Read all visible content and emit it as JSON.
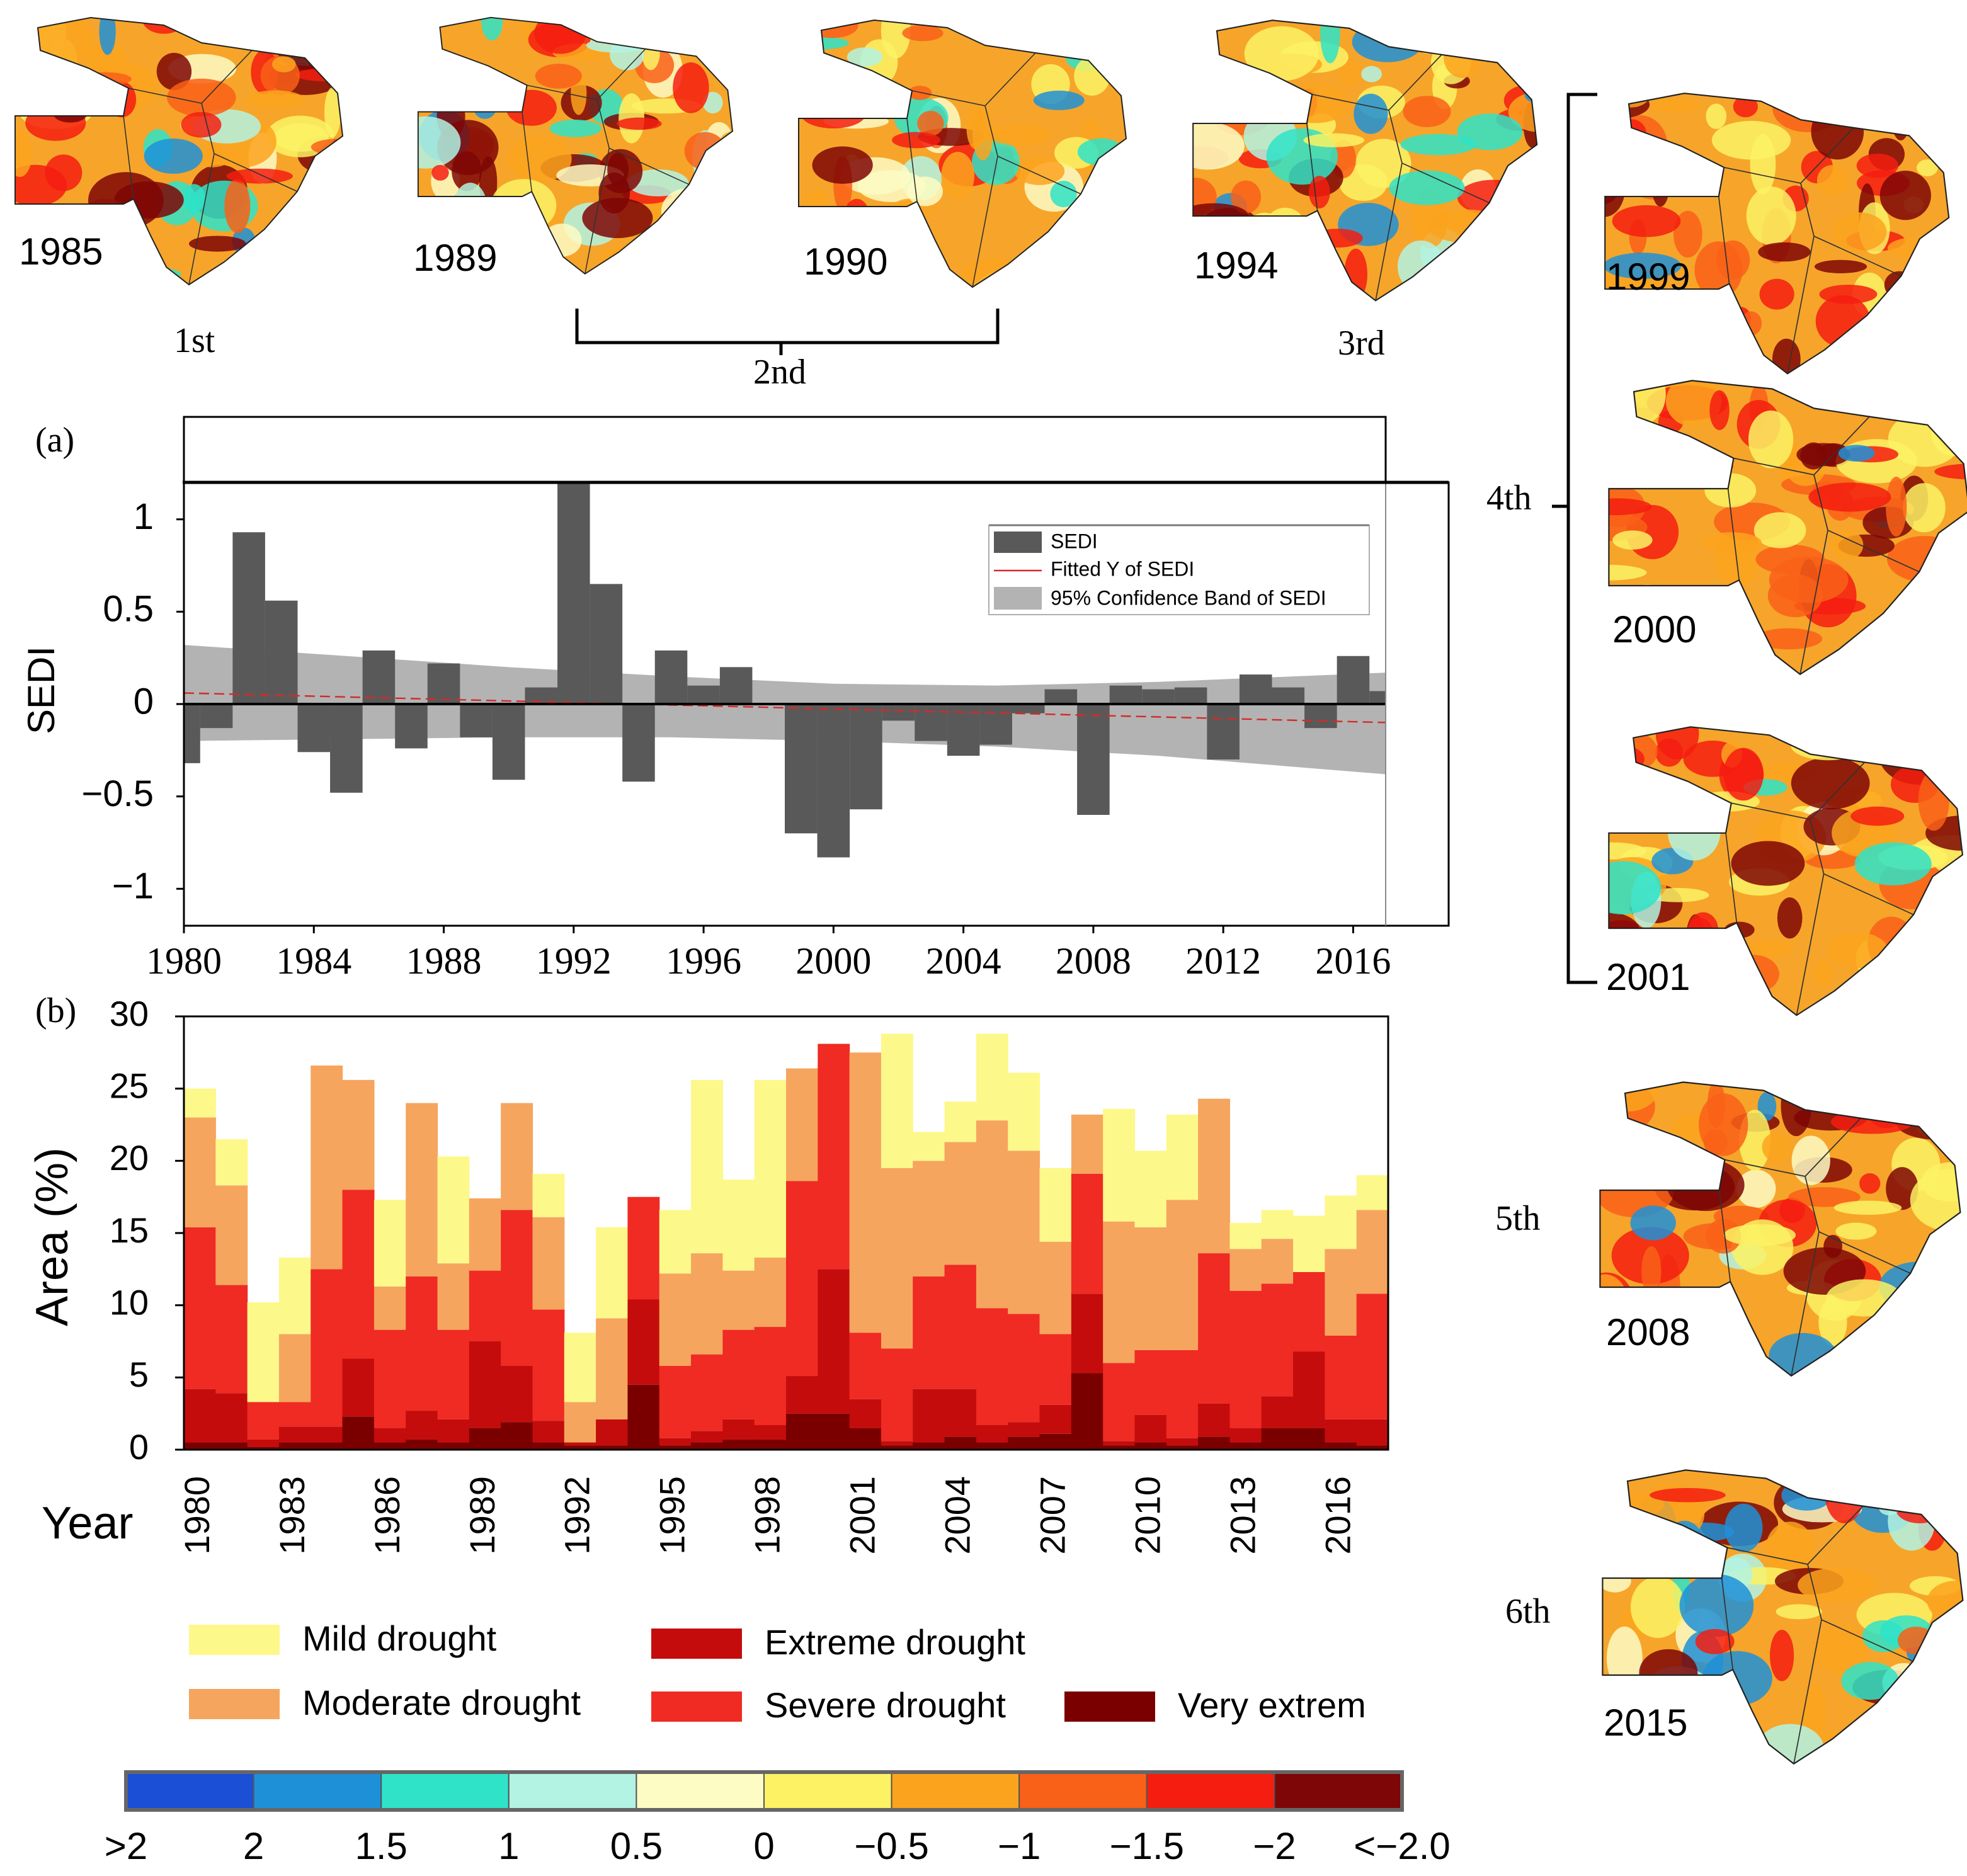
{
  "maps": [
    {
      "label": "1985"
    },
    {
      "label": "1989"
    },
    {
      "label": "1990"
    },
    {
      "label": "1994"
    },
    {
      "label": "1999"
    },
    {
      "label": "2000"
    },
    {
      "label": "2001"
    },
    {
      "label": "2008"
    },
    {
      "label": "2015"
    }
  ],
  "events": [
    "1st",
    "2nd",
    "3rd",
    "4th",
    "5th",
    "6th"
  ],
  "chart_data": [
    {
      "type": "bar",
      "label": "(a)",
      "ylabel": "SEDI",
      "x": [
        1980,
        1981,
        1982,
        1983,
        1984,
        1985,
        1986,
        1987,
        1988,
        1989,
        1990,
        1991,
        1992,
        1993,
        1994,
        1995,
        1996,
        1997,
        1998,
        1999,
        2000,
        2001,
        2002,
        2003,
        2004,
        2005,
        2006,
        2007,
        2008,
        2009,
        2010,
        2011,
        2012,
        2013,
        2014,
        2015,
        2016,
        2017
      ],
      "series": [
        {
          "name": "SEDI",
          "color": "#595959",
          "values": [
            -0.32,
            -0.13,
            0.93,
            0.56,
            -0.26,
            -0.48,
            0.29,
            -0.24,
            0.22,
            -0.18,
            -0.41,
            0.09,
            1.2,
            0.65,
            -0.42,
            0.29,
            0.1,
            0.2,
            0.0,
            -0.7,
            -0.83,
            -0.57,
            -0.09,
            -0.2,
            -0.28,
            -0.22,
            -0.05,
            0.08,
            -0.6,
            0.1,
            0.08,
            0.09,
            -0.3,
            0.16,
            0.09,
            -0.13,
            0.26,
            0.07
          ]
        }
      ],
      "fit": {
        "name": "Fitted Y of SEDI",
        "color": "#d42a2a",
        "x": [
          1980,
          2017
        ],
        "values": [
          0.06,
          -0.1
        ]
      },
      "band": {
        "name": "95% Confidence Band of SEDI",
        "color": "#b3b3b3",
        "x": [
          1980,
          1985,
          1990,
          1995,
          2000,
          2005,
          2010,
          2017
        ],
        "upper": [
          0.32,
          0.26,
          0.2,
          0.15,
          0.11,
          0.1,
          0.12,
          0.17
        ],
        "lower": [
          -0.2,
          -0.19,
          -0.18,
          -0.18,
          -0.2,
          -0.23,
          -0.28,
          -0.38
        ]
      },
      "xlim": [
        1980,
        2017
      ],
      "ylim": [
        -1.2,
        1.2
      ],
      "xticks": [
        1980,
        1984,
        1988,
        1992,
        1996,
        2000,
        2004,
        2008,
        2012,
        2016
      ],
      "yticks": [
        {
          "value": -1,
          "label": "−1"
        },
        {
          "value": -0.5,
          "label": "−0.5"
        },
        0,
        0.5,
        1
      ]
    },
    {
      "type": "stacked_bar",
      "label": "(b)",
      "xlabel": "Year",
      "ylabel": "Area (%)",
      "categories": [
        "1980",
        null,
        null,
        "1983",
        null,
        null,
        "1986",
        null,
        null,
        "1989",
        null,
        null,
        "1992",
        null,
        null,
        "1995",
        null,
        null,
        "1998",
        null,
        null,
        "2001",
        null,
        null,
        "2004",
        null,
        null,
        "2007",
        null,
        null,
        "2010",
        null,
        null,
        "2013",
        null,
        null,
        "2016",
        null
      ],
      "series": [
        {
          "name": "Very extrem",
          "color": "#7a0000",
          "values": [
            0.5,
            0.5,
            0.2,
            0.5,
            0.5,
            2.3,
            0.5,
            0.7,
            0.5,
            1.5,
            1.9,
            0.5,
            0.3,
            0.3,
            4.5,
            0.3,
            0.5,
            0.7,
            0.7,
            2.5,
            2.5,
            1.5,
            0.3,
            0.5,
            0.9,
            0.5,
            0.9,
            1.1,
            5.3,
            0.3,
            0.5,
            0.3,
            0.9,
            0.5,
            1.5,
            1.5,
            0.5,
            0.3
          ]
        },
        {
          "name": "Extreme drought",
          "color": "#c40c0c",
          "values": [
            3.7,
            3.4,
            0.5,
            1.1,
            1.1,
            4.0,
            1.0,
            2.0,
            1.6,
            6.0,
            3.9,
            1.5,
            0.2,
            1.8,
            5.9,
            0.5,
            0.8,
            1.4,
            1.0,
            2.6,
            10.0,
            2.0,
            0.3,
            3.7,
            3.3,
            1.2,
            1.0,
            2.0,
            5.5,
            0.3,
            1.9,
            0.5,
            2.3,
            1.0,
            2.2,
            5.3,
            1.6,
            1.8
          ]
        },
        {
          "name": "Severe drought",
          "color": "#ef2b23",
          "values": [
            11.2,
            7.5,
            2.6,
            1.7,
            10.9,
            11.7,
            6.8,
            9.3,
            6.2,
            4.9,
            10.8,
            7.7,
            0,
            0,
            7.1,
            5.0,
            5.3,
            6.2,
            6.8,
            13.5,
            15.6,
            4.6,
            6.4,
            7.8,
            8.6,
            8.1,
            7.5,
            4.9,
            8.3,
            5.4,
            4.5,
            6.1,
            10.4,
            9.5,
            7.8,
            5.5,
            5.8,
            8.7
          ]
        },
        {
          "name": "Moderate drought",
          "color": "#f6a55e",
          "values": [
            7.6,
            6.9,
            0,
            4.7,
            14.1,
            7.6,
            3.0,
            12.0,
            4.6,
            5.0,
            7.4,
            6.4,
            2.8,
            7.0,
            0,
            6.4,
            7.0,
            4.1,
            4.8,
            7.8,
            0,
            19.4,
            12.5,
            8.0,
            8.5,
            13.0,
            11.3,
            6.4,
            4.1,
            9.8,
            8.5,
            10.4,
            10.7,
            2.9,
            3.1,
            0,
            6.0,
            5.8
          ]
        },
        {
          "name": "Mild drought",
          "color": "#fdf88a",
          "values": [
            2.0,
            3.2,
            6.9,
            5.3,
            0,
            0,
            6.0,
            0,
            7.4,
            0,
            0,
            3.0,
            4.8,
            6.3,
            0,
            4.4,
            12.0,
            6.3,
            12.3,
            0,
            0,
            0,
            9.3,
            2.0,
            2.8,
            6.0,
            5.4,
            5.1,
            0,
            7.8,
            5.3,
            5.9,
            0,
            1.8,
            2.0,
            3.9,
            3.7,
            2.4
          ]
        }
      ],
      "ylim": [
        0,
        30
      ],
      "yticks": [
        0,
        5,
        10,
        15,
        20,
        25,
        30
      ]
    }
  ],
  "colorbar": {
    "colors": [
      "#1a4fd6",
      "#1e90d8",
      "#2ee3c8",
      "#b3f3e3",
      "#fdfcc4",
      "#fcf264",
      "#fca31e",
      "#f96018",
      "#f51d10",
      "#7e0606"
    ],
    "labels": [
      ">2",
      "2",
      "1.5",
      "1",
      "0.5",
      "0",
      "−0.5",
      "−1",
      "−1.5",
      "−2",
      "<−2.0"
    ]
  }
}
